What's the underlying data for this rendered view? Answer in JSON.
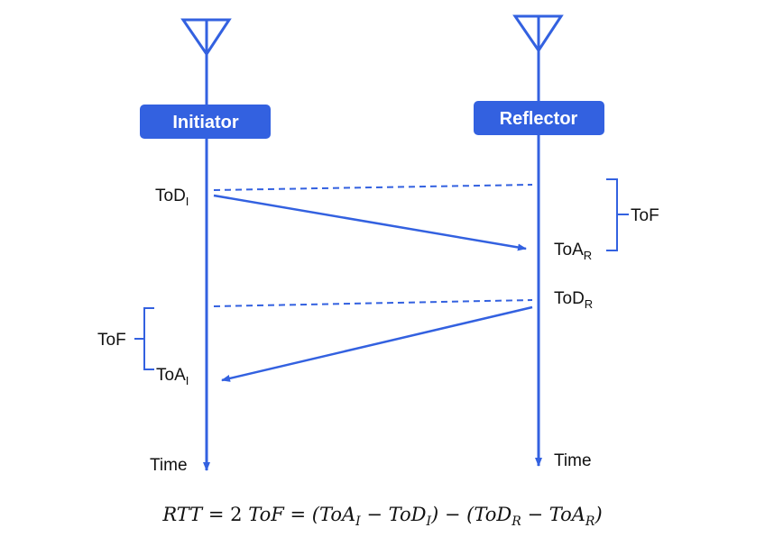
{
  "colors": {
    "accent": "#3361e0",
    "text": "#111111"
  },
  "initiator": {
    "label": "Initiator",
    "icon": "antenna-icon"
  },
  "reflector": {
    "label": "Reflector",
    "icon": "antenna-icon"
  },
  "labels": {
    "tod_i": {
      "main": "ToD",
      "sub": "I"
    },
    "toa_r": {
      "main": "ToA",
      "sub": "R"
    },
    "tod_r": {
      "main": "ToD",
      "sub": "R"
    },
    "toa_i": {
      "main": "ToA",
      "sub": "I"
    },
    "tof_right": "ToF",
    "tof_left": "ToF",
    "time_left": "Time",
    "time_right": "Time"
  },
  "formula": {
    "p1": "RTT ",
    "eq1": "=",
    "p2": " 2 ",
    "p3": "ToF ",
    "eq2": "=",
    "p4": " (ToA",
    "s1": "I",
    "m1": " − ",
    "p5": "ToD",
    "s2": "I",
    "p6": ") − (ToD",
    "s3": "R",
    "m2": " − ",
    "p7": "ToA",
    "s4": "R",
    "p8": ")"
  }
}
